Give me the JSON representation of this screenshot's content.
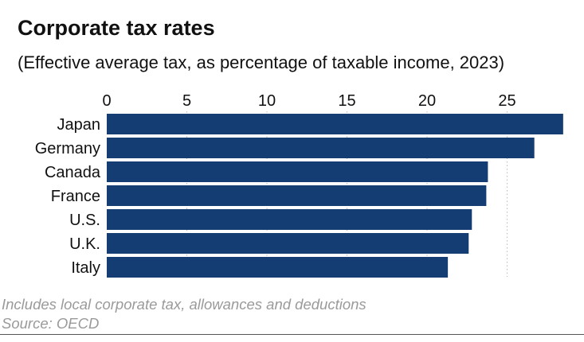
{
  "chart_data": {
    "type": "bar",
    "orientation": "horizontal",
    "title": "Corporate tax rates",
    "subtitle": "(Effective average tax, as percentage of taxable income, 2023)",
    "categories": [
      "Japan",
      "Germany",
      "Canada",
      "France",
      "U.S.",
      "U.K.",
      "Italy"
    ],
    "values": [
      28.5,
      26.7,
      23.8,
      23.7,
      22.8,
      22.6,
      21.3
    ],
    "xlim": [
      0,
      30
    ],
    "ticks": [
      0,
      5,
      10,
      15,
      20,
      25
    ],
    "tick_labels": [
      "0",
      "5",
      "10",
      "15",
      "20",
      "25"
    ],
    "xaxis_position": "top",
    "grid": true,
    "bar_color": "#143d73",
    "grid_color": "#bbbbbb",
    "xlabel": "",
    "ylabel": ""
  },
  "footer": {
    "note": "Includes local corporate tax, allowances and deductions",
    "source": "Source: OECD"
  }
}
